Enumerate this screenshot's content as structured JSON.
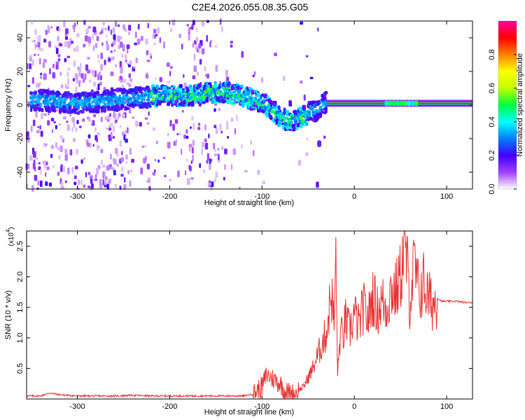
{
  "title": "C2E4.2026.055.08.35.G05",
  "chart_data": [
    {
      "type": "heatmap",
      "xlabel": "Height of straight line (km)",
      "ylabel": "Frequency (Hz)",
      "xlim": [
        -355,
        128
      ],
      "ylim": [
        -50,
        50
      ],
      "x_ticks": [
        -300,
        -200,
        -100,
        0,
        100
      ],
      "x_tick_labels": [
        "-300",
        "-200",
        "-100",
        "0",
        "100"
      ],
      "y_ticks": [
        -40,
        -20,
        0,
        20,
        40
      ],
      "y_tick_labels": [
        "-40",
        "-20",
        "0",
        "20",
        "40"
      ],
      "colorbar": {
        "label": "Normalized spectral amplitude",
        "range": [
          0,
          1
        ],
        "ticks": [
          0.0,
          0.2,
          0.4,
          0.6,
          0.8
        ],
        "tick_labels": [
          "0.0",
          "0.2",
          "0.4",
          "0.6",
          "0.8"
        ],
        "colors": [
          "#ffffff",
          "#a040ff",
          "#4000ff",
          "#0080ff",
          "#00ffff",
          "#00ff40",
          "#c0ff00",
          "#ffff00",
          "#ff8000",
          "#ff0000",
          "#ff00a0"
        ]
      },
      "frequency_trace": {
        "x": [
          -340,
          -320,
          -300,
          -280,
          -260,
          -240,
          -220,
          -200,
          -180,
          -160,
          -140,
          -120,
          -100,
          -90,
          -80,
          -70,
          -60,
          -50,
          -40,
          -30,
          -20,
          0,
          20,
          40,
          60,
          80,
          100,
          128
        ],
        "y": [
          3,
          2,
          1,
          2,
          3,
          4,
          5,
          6,
          5,
          7,
          8,
          5,
          2,
          -3,
          -7,
          -10,
          -8,
          -5,
          -3,
          2,
          1,
          1,
          1,
          1,
          1,
          1,
          1,
          1
        ]
      },
      "isolated_patch": {
        "x": -38,
        "y": -23
      }
    },
    {
      "type": "line",
      "xlabel": "Height of straight line (km)",
      "ylabel": "SNR (10 * v/v)",
      "y_multiplier": "(x10",
      "y_multiplier_exp": "4",
      "y_multiplier_close": ")",
      "xlim": [
        -355,
        128
      ],
      "ylim": [
        0,
        2.75
      ],
      "x_ticks": [
        -300,
        -200,
        -100,
        0,
        100
      ],
      "x_tick_labels": [
        "-300",
        "-200",
        "-100",
        "0",
        "100"
      ],
      "y_ticks": [
        0.5,
        1.0,
        1.5,
        2.0,
        2.5
      ],
      "y_tick_labels": [
        "0.5",
        "1.0",
        "1.5",
        "2.0",
        "2.5"
      ],
      "series": [
        {
          "color": "#e83030",
          "x": [
            -355,
            -340,
            -330,
            -320,
            -300,
            -280,
            -260,
            -240,
            -220,
            -200,
            -180,
            -160,
            -140,
            -120,
            -110,
            -100,
            -95,
            -90,
            -85,
            -80,
            -75,
            -70,
            -65,
            -60,
            -55,
            -50,
            -45,
            -40,
            -35,
            -30,
            -27,
            -25,
            -22,
            -20,
            -18,
            -15,
            -12,
            -10,
            -5,
            0,
            5,
            10,
            15,
            20,
            25,
            30,
            35,
            40,
            45,
            50,
            55,
            60,
            65,
            70,
            75,
            80,
            85,
            90,
            95,
            100,
            110,
            120,
            128
          ],
          "y": [
            0.05,
            0.05,
            0.1,
            0.07,
            0.05,
            0.05,
            0.05,
            0.06,
            0.05,
            0.05,
            0.05,
            0.05,
            0.05,
            0.05,
            0.08,
            0.2,
            0.4,
            0.35,
            0.3,
            0.25,
            0.12,
            0.1,
            0.08,
            0.15,
            0.2,
            0.35,
            0.5,
            0.7,
            0.9,
            1.1,
            1.5,
            1.8,
            1.2,
            2.25,
            0.4,
            1.1,
            1.0,
            1.3,
            1.1,
            1.4,
            1.2,
            1.5,
            1.3,
            1.7,
            1.45,
            1.6,
            1.5,
            1.8,
            1.75,
            2.0,
            2.6,
            1.6,
            2.2,
            1.7,
            1.9,
            1.65,
            1.55,
            1.65,
            1.6,
            1.6,
            1.6,
            1.58,
            1.58
          ]
        }
      ]
    }
  ]
}
